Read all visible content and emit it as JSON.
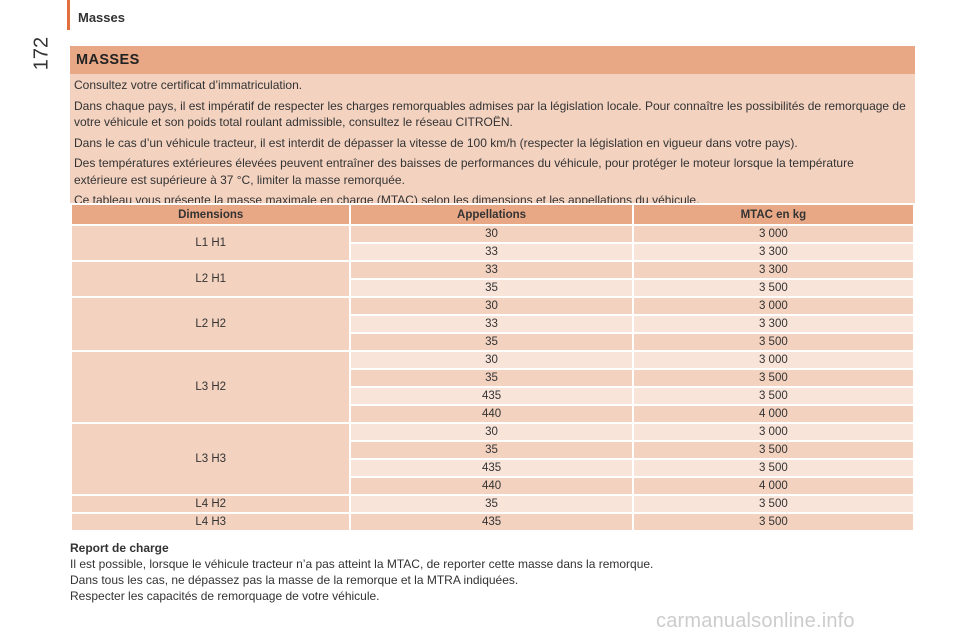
{
  "header": {
    "title": "Masses",
    "page_number": "172",
    "accent_color": "#e2703f"
  },
  "section": {
    "title": "MASSES",
    "paragraphs": [
      "Consultez votre certificat d’immatriculation.",
      "Dans chaque pays, il est impératif de respecter les charges remorquables admises par la législation locale. Pour connaître les possibilités de remorquage de votre véhicule et son poids total roulant admissible, consultez le réseau CITROËN.",
      "Dans le cas d’un véhicule tracteur, il est interdit de dépasser la vitesse de 100 km/h (respecter la législation en vigueur dans votre pays).",
      "Des températures extérieures élevées peuvent entraîner des baisses de performances du véhicule, pour protéger le moteur lorsque la température extérieure est supérieure à 37 °C, limiter la masse remorquée.",
      "Ce tableau vous présente la masse maximale en charge (MTAC) selon les dimensions et les appellations du véhicule."
    ]
  },
  "table": {
    "headers": [
      "Dimensions",
      "Appellations",
      "MTAC en kg"
    ],
    "groups": [
      {
        "dimension": "L1 H1",
        "rows": [
          {
            "appellation": "30",
            "mtac": "3 000"
          },
          {
            "appellation": "33",
            "mtac": "3 300"
          }
        ]
      },
      {
        "dimension": "L2 H1",
        "rows": [
          {
            "appellation": "33",
            "mtac": "3 300"
          },
          {
            "appellation": "35",
            "mtac": "3 500"
          }
        ]
      },
      {
        "dimension": "L2 H2",
        "rows": [
          {
            "appellation": "30",
            "mtac": "3 000"
          },
          {
            "appellation": "33",
            "mtac": "3 300"
          },
          {
            "appellation": "35",
            "mtac": "3 500"
          }
        ]
      },
      {
        "dimension": "L3 H2",
        "rows": [
          {
            "appellation": "30",
            "mtac": "3 000"
          },
          {
            "appellation": "35",
            "mtac": "3 500"
          },
          {
            "appellation": "435",
            "mtac": "3 500"
          },
          {
            "appellation": "440",
            "mtac": "4 000"
          }
        ]
      },
      {
        "dimension": "L3 H3",
        "rows": [
          {
            "appellation": "30",
            "mtac": "3 000"
          },
          {
            "appellation": "35",
            "mtac": "3 500"
          },
          {
            "appellation": "435",
            "mtac": "3 500"
          },
          {
            "appellation": "440",
            "mtac": "4 000"
          }
        ]
      },
      {
        "dimension": "L4 H2",
        "rows": [
          {
            "appellation": "35",
            "mtac": "3 500"
          }
        ]
      },
      {
        "dimension": "L4 H3",
        "rows": [
          {
            "appellation": "435",
            "mtac": "3 500"
          }
        ]
      }
    ]
  },
  "footer": {
    "title": "Report de charge",
    "lines": [
      "Il est possible, lorsque le véhicule tracteur n’a pas atteint la MTAC, de reporter cette masse dans la remorque.",
      "Dans tous les cas, ne dépassez pas la masse de la remorque et la MTRA indiquées.",
      "Respecter les capacités de remorquage de votre véhicule."
    ]
  },
  "watermark": "carmanualsonline.info"
}
